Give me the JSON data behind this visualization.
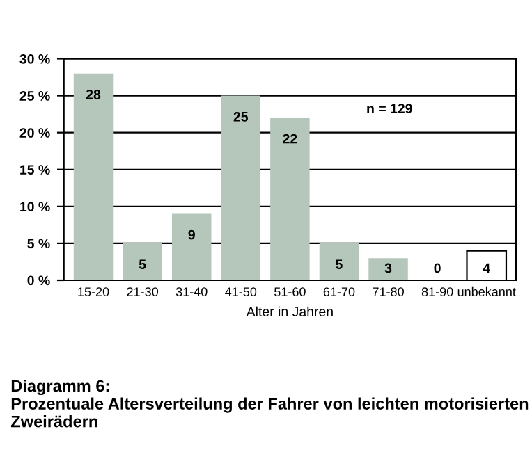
{
  "chart_data": {
    "type": "bar",
    "title": "Diagramm 6:\nProzentuale Altersverteilung der Fahrer von leichten motorisierten Zweirädern",
    "xlabel": "Alter in Jahren",
    "categories": [
      "15-20",
      "21-30",
      "31-40",
      "41-50",
      "51-60",
      "61-70",
      "71-80",
      "81-90",
      "unbekannt"
    ],
    "values": [
      28,
      5,
      9,
      25,
      22,
      5,
      3,
      0,
      4
    ],
    "colors": [
      "#b5c6bb",
      "#b5c6bb",
      "#b5c6bb",
      "#b5c6bb",
      "#b5c6bb",
      "#b5c6bb",
      "#b5c6bb",
      "#b5c6bb",
      "#ffffff"
    ],
    "ylim": [
      0,
      30
    ],
    "yticks": [
      {
        "value": 0,
        "label": "0 %"
      },
      {
        "value": 5,
        "label": "5 %"
      },
      {
        "value": 10,
        "label": "10 %"
      },
      {
        "value": 15,
        "label": "15 %"
      },
      {
        "value": 20,
        "label": "20 %"
      },
      {
        "value": 25,
        "label": "25 %"
      },
      {
        "value": 30,
        "label": "30 %"
      }
    ],
    "grid": "y",
    "data_labels": true,
    "annotations": [
      "n = 129"
    ]
  }
}
